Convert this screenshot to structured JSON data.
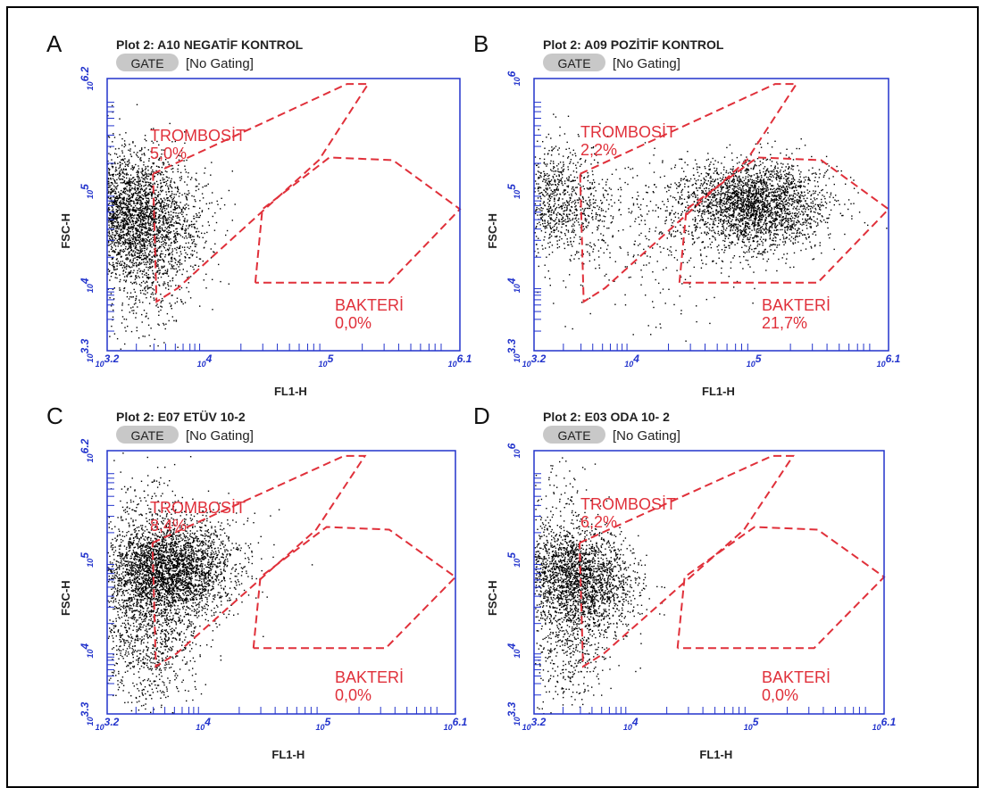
{
  "panels": [
    {
      "letter": "A",
      "title": "Plot 2: A10 NEGATİF KONTROL",
      "gate_button": "GATE",
      "gating": "[No Gating]",
      "y_label": "FSC-H",
      "x_label": "FL1-H",
      "y_ticks": [
        {
          "base": "10",
          "exp": "3.3"
        },
        {
          "base": "10",
          "exp": "4"
        },
        {
          "base": "10",
          "exp": "5"
        },
        {
          "base": "10",
          "exp": "6.2"
        }
      ],
      "x_ticks": [
        {
          "base": "10",
          "exp": "3.2"
        },
        {
          "base": "10",
          "exp": "4"
        },
        {
          "base": "10",
          "exp": "5"
        },
        {
          "base": "10",
          "exp": "6.1"
        }
      ],
      "gates": [
        {
          "name": "TROMBOSİT",
          "percent": "5,0%"
        },
        {
          "name": "BAKTERİ",
          "percent": "0,0%"
        }
      ]
    },
    {
      "letter": "B",
      "title": "Plot 2: A09 POZİTİF KONTROL",
      "gate_button": "GATE",
      "gating": "[No Gating]",
      "y_label": "FSC-H",
      "x_label": "FL1-H",
      "y_ticks": [
        {
          "base": "10",
          "exp": "3.3"
        },
        {
          "base": "10",
          "exp": "4"
        },
        {
          "base": "10",
          "exp": "5"
        },
        {
          "base": "10",
          "exp": "6"
        }
      ],
      "x_ticks": [
        {
          "base": "10",
          "exp": "3.2"
        },
        {
          "base": "10",
          "exp": "4"
        },
        {
          "base": "10",
          "exp": "5"
        },
        {
          "base": "10",
          "exp": "6.1"
        }
      ],
      "gates": [
        {
          "name": "TROMBOSİT",
          "percent": "2,2%"
        },
        {
          "name": "BAKTERİ",
          "percent": "21,7%"
        }
      ]
    },
    {
      "letter": "C",
      "title": "Plot 2: E07 ETÜV 10-2",
      "gate_button": "GATE",
      "gating": "[No Gating]",
      "y_label": "FSC-H",
      "x_label": "FL1-H",
      "y_ticks": [
        {
          "base": "10",
          "exp": "3.3"
        },
        {
          "base": "10",
          "exp": "4"
        },
        {
          "base": "10",
          "exp": "5"
        },
        {
          "base": "10",
          "exp": "6.2"
        }
      ],
      "x_ticks": [
        {
          "base": "10",
          "exp": "3.2"
        },
        {
          "base": "10",
          "exp": "4"
        },
        {
          "base": "10",
          "exp": "5"
        },
        {
          "base": "10",
          "exp": "6.1"
        }
      ],
      "gates": [
        {
          "name": "TROMBOSİT",
          "percent": "8,4%"
        },
        {
          "name": "BAKTERİ",
          "percent": "0,0%"
        }
      ]
    },
    {
      "letter": "D",
      "title": "Plot 2: E03 ODA 10- 2",
      "gate_button": "GATE",
      "gating": "[No Gating]",
      "y_label": "FSC-H",
      "x_label": "FL1-H",
      "y_ticks": [
        {
          "base": "10",
          "exp": "3.3"
        },
        {
          "base": "10",
          "exp": "4"
        },
        {
          "base": "10",
          "exp": "5"
        },
        {
          "base": "10",
          "exp": "6"
        }
      ],
      "x_ticks": [
        {
          "base": "10",
          "exp": "3.2"
        },
        {
          "base": "10",
          "exp": "4"
        },
        {
          "base": "10",
          "exp": "5"
        },
        {
          "base": "10",
          "exp": "6.1"
        }
      ],
      "gates": [
        {
          "name": "TROMBOSİT",
          "percent": "6,2%"
        },
        {
          "name": "BAKTERİ",
          "percent": "0,0%"
        }
      ]
    }
  ]
}
